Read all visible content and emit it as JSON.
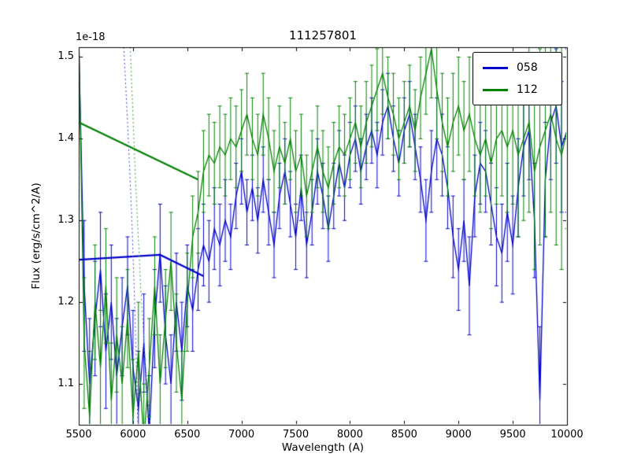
{
  "chart_data": {
    "type": "line",
    "title": "111257801",
    "xlabel": "Wavelength (A)",
    "ylabel": "Flux (erg/s/cm^2/A)",
    "offset_text": "1e-18",
    "xlim": [
      5500,
      10000
    ],
    "ylim": [
      1.05,
      1.512
    ],
    "xticks": [
      5500,
      6000,
      6500,
      7000,
      7500,
      8000,
      8500,
      9000,
      9500,
      10000
    ],
    "yticks": [
      1.1,
      1.2,
      1.3,
      1.4,
      1.5
    ],
    "grid": false,
    "legend": {
      "position": "upper right",
      "entries": [
        {
          "label": "058",
          "color": "#0000cc"
        },
        {
          "label": "112",
          "color": "#008000"
        }
      ]
    },
    "x": [
      5500,
      5550,
      5600,
      5650,
      5700,
      5750,
      5800,
      5850,
      5900,
      5950,
      6000,
      6050,
      6100,
      6150,
      6200,
      6250,
      6300,
      6350,
      6400,
      6450,
      6500,
      6550,
      6600,
      6650,
      6700,
      6750,
      6800,
      6850,
      6900,
      6950,
      7000,
      7050,
      7100,
      7150,
      7200,
      7250,
      7300,
      7350,
      7400,
      7450,
      7500,
      7550,
      7600,
      7650,
      7700,
      7750,
      7800,
      7850,
      7900,
      7950,
      8000,
      8050,
      8100,
      8150,
      8200,
      8250,
      8300,
      8350,
      8400,
      8450,
      8500,
      8550,
      8600,
      8650,
      8700,
      8750,
      8800,
      8850,
      8900,
      8950,
      9000,
      9050,
      9100,
      9150,
      9200,
      9250,
      9300,
      9350,
      9400,
      9450,
      9500,
      9550,
      9600,
      9650,
      9700,
      9750,
      9800,
      9850,
      9900,
      9950,
      10000
    ],
    "series": [
      {
        "name": "058",
        "type": "errorbar",
        "color": "#0000cc",
        "linewidth": 1.3,
        "values": [
          1.52,
          1.22,
          1.1,
          1.18,
          1.24,
          1.14,
          1.2,
          1.11,
          1.17,
          1.22,
          1.12,
          1.07,
          1.15,
          1.04,
          1.18,
          1.26,
          1.16,
          1.1,
          1.2,
          1.14,
          1.22,
          1.19,
          1.24,
          1.27,
          1.25,
          1.29,
          1.27,
          1.3,
          1.28,
          1.33,
          1.36,
          1.31,
          1.34,
          1.3,
          1.35,
          1.31,
          1.27,
          1.33,
          1.36,
          1.32,
          1.28,
          1.34,
          1.27,
          1.31,
          1.36,
          1.33,
          1.29,
          1.33,
          1.37,
          1.34,
          1.38,
          1.4,
          1.36,
          1.39,
          1.41,
          1.38,
          1.42,
          1.44,
          1.4,
          1.37,
          1.41,
          1.43,
          1.39,
          1.35,
          1.3,
          1.36,
          1.4,
          1.38,
          1.34,
          1.28,
          1.24,
          1.3,
          1.22,
          1.33,
          1.37,
          1.36,
          1.32,
          1.28,
          1.26,
          1.31,
          1.27,
          1.34,
          1.39,
          1.41,
          1.3,
          1.08,
          1.35,
          1.42,
          1.44,
          1.39,
          1.41
        ],
        "yerr": [
          0.1,
          0.08,
          0.08,
          0.07,
          0.07,
          0.07,
          0.07,
          0.07,
          0.06,
          0.06,
          0.07,
          0.07,
          0.06,
          0.07,
          0.06,
          0.06,
          0.06,
          0.06,
          0.06,
          0.06,
          0.05,
          0.05,
          0.05,
          0.05,
          0.05,
          0.05,
          0.05,
          0.05,
          0.04,
          0.04,
          0.04,
          0.04,
          0.04,
          0.04,
          0.04,
          0.04,
          0.04,
          0.04,
          0.04,
          0.04,
          0.04,
          0.04,
          0.04,
          0.04,
          0.04,
          0.04,
          0.04,
          0.04,
          0.04,
          0.04,
          0.04,
          0.04,
          0.04,
          0.04,
          0.04,
          0.04,
          0.04,
          0.04,
          0.04,
          0.04,
          0.04,
          0.04,
          0.04,
          0.04,
          0.05,
          0.05,
          0.05,
          0.05,
          0.05,
          0.05,
          0.05,
          0.05,
          0.06,
          0.05,
          0.05,
          0.05,
          0.05,
          0.06,
          0.06,
          0.06,
          0.06,
          0.06,
          0.06,
          0.06,
          0.07,
          0.09,
          0.07,
          0.07,
          0.07,
          0.08,
          0.1
        ]
      },
      {
        "name": "112",
        "type": "errorbar",
        "color": "#008000",
        "linewidth": 1.3,
        "values": [
          1.53,
          1.15,
          1.06,
          1.2,
          1.12,
          1.22,
          1.08,
          1.16,
          1.1,
          1.18,
          1.06,
          1.14,
          1.03,
          1.12,
          1.22,
          1.1,
          1.18,
          1.25,
          1.15,
          1.08,
          1.2,
          1.28,
          1.31,
          1.36,
          1.38,
          1.37,
          1.39,
          1.38,
          1.4,
          1.39,
          1.41,
          1.43,
          1.4,
          1.38,
          1.43,
          1.4,
          1.36,
          1.39,
          1.37,
          1.4,
          1.36,
          1.38,
          1.33,
          1.36,
          1.39,
          1.36,
          1.34,
          1.37,
          1.39,
          1.38,
          1.4,
          1.42,
          1.39,
          1.42,
          1.44,
          1.46,
          1.48,
          1.45,
          1.43,
          1.4,
          1.42,
          1.44,
          1.41,
          1.45,
          1.48,
          1.51,
          1.46,
          1.42,
          1.39,
          1.42,
          1.44,
          1.41,
          1.43,
          1.4,
          1.38,
          1.4,
          1.37,
          1.4,
          1.41,
          1.39,
          1.41,
          1.38,
          1.4,
          1.42,
          1.36,
          1.39,
          1.41,
          1.43,
          1.4,
          1.38,
          1.41
        ],
        "yerr": [
          0.1,
          0.08,
          0.08,
          0.07,
          0.07,
          0.07,
          0.07,
          0.07,
          0.07,
          0.06,
          0.07,
          0.06,
          0.07,
          0.06,
          0.06,
          0.06,
          0.06,
          0.06,
          0.06,
          0.06,
          0.06,
          0.05,
          0.05,
          0.05,
          0.05,
          0.05,
          0.05,
          0.05,
          0.05,
          0.05,
          0.05,
          0.05,
          0.05,
          0.05,
          0.05,
          0.05,
          0.05,
          0.05,
          0.05,
          0.05,
          0.05,
          0.05,
          0.05,
          0.05,
          0.05,
          0.05,
          0.05,
          0.05,
          0.05,
          0.05,
          0.05,
          0.05,
          0.05,
          0.05,
          0.05,
          0.05,
          0.05,
          0.05,
          0.05,
          0.05,
          0.05,
          0.05,
          0.05,
          0.05,
          0.05,
          0.06,
          0.06,
          0.06,
          0.06,
          0.06,
          0.06,
          0.06,
          0.07,
          0.07,
          0.07,
          0.07,
          0.08,
          0.08,
          0.08,
          0.08,
          0.09,
          0.1,
          0.1,
          0.11,
          0.12,
          0.12,
          0.13,
          0.12,
          0.13,
          0.14,
          0.12
        ]
      },
      {
        "name": "058-interp",
        "type": "line",
        "color": "#0000cc",
        "linewidth": 2.2,
        "points": [
          [
            5500,
            1.252
          ],
          [
            6250,
            1.258
          ],
          [
            6650,
            1.232
          ]
        ]
      },
      {
        "name": "112-interp",
        "type": "line",
        "color": "#008000",
        "linewidth": 2.2,
        "points": [
          [
            5500,
            1.42
          ],
          [
            6600,
            1.35
          ]
        ]
      },
      {
        "name": "058-mask",
        "type": "dotted",
        "color": "#4040d0",
        "linewidth": 1,
        "points": [
          [
            5915,
            1.512
          ],
          [
            5950,
            1.42
          ],
          [
            5990,
            1.3
          ],
          [
            6020,
            1.18
          ],
          [
            6045,
            1.05
          ]
        ]
      },
      {
        "name": "112-mask",
        "type": "dotted",
        "color": "#3d9a3d",
        "linewidth": 1,
        "points": [
          [
            5975,
            1.512
          ],
          [
            6020,
            1.36
          ],
          [
            6070,
            1.22
          ],
          [
            6130,
            1.09
          ],
          [
            6160,
            1.05
          ]
        ]
      }
    ]
  }
}
